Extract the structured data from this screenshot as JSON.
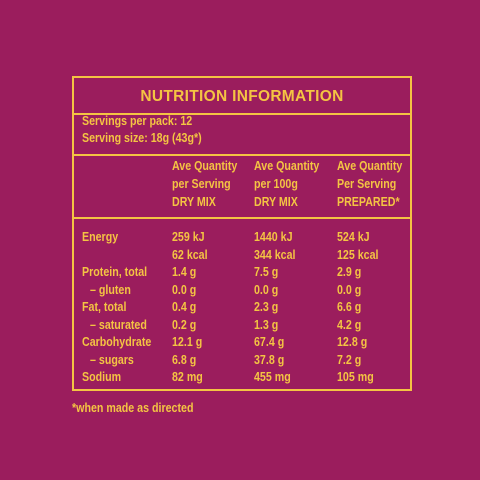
{
  "title": "NUTRITION INFORMATION",
  "servings": [
    "Servings per pack: 12",
    "Serving size: 18g (43g*)"
  ],
  "headers": [
    [
      "Ave Quantity",
      "per Serving",
      "DRY MIX"
    ],
    [
      "Ave Quantity",
      "per 100g",
      "DRY MIX"
    ],
    [
      "Ave Quantity",
      "Per Serving",
      "PREPARED*"
    ]
  ],
  "rows": [
    {
      "label": "Energy",
      "values": [
        [
          "259 kJ",
          "62 kcal"
        ],
        [
          "1440 kJ",
          "344 kcal"
        ],
        [
          "524 kJ",
          "125 kcal"
        ]
      ]
    },
    {
      "label": "Protein, total",
      "values": [
        [
          "1.4 g"
        ],
        [
          "7.5 g"
        ],
        [
          "2.9 g"
        ]
      ]
    },
    {
      "label": "– gluten",
      "values": [
        [
          "0.0 g"
        ],
        [
          "0.0 g"
        ],
        [
          "0.0 g"
        ]
      ]
    },
    {
      "label": "Fat, total",
      "values": [
        [
          "0.4 g"
        ],
        [
          "2.3 g"
        ],
        [
          "6.6 g"
        ]
      ]
    },
    {
      "label": "– saturated",
      "values": [
        [
          "0.2 g"
        ],
        [
          "1.3 g"
        ],
        [
          "4.2 g"
        ]
      ]
    },
    {
      "label": "Carbohydrate",
      "values": [
        [
          "12.1 g"
        ],
        [
          "67.4 g"
        ],
        [
          "12.8 g"
        ]
      ]
    },
    {
      "label": "– sugars",
      "values": [
        [
          "6.8 g"
        ],
        [
          "37.8 g"
        ],
        [
          "7.2 g"
        ]
      ]
    },
    {
      "label": "Sodium",
      "values": [
        [
          "82 mg"
        ],
        [
          "455 mg"
        ],
        [
          "105 mg"
        ]
      ]
    }
  ],
  "footnote": "*when made as directed"
}
